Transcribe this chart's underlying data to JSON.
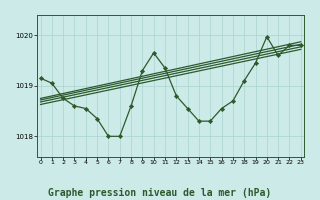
{
  "bg_color": "#cceae7",
  "grid_color": "#aad4d0",
  "line_color": "#2d5a2d",
  "marker_color": "#2d5a2d",
  "title": "Graphe pression niveau de la mer (hPa)",
  "title_fontsize": 7.0,
  "ylim": [
    1017.6,
    1020.4
  ],
  "yticks": [
    1018,
    1019,
    1020
  ],
  "xlim": [
    -0.3,
    23.3
  ],
  "xticks": [
    0,
    1,
    2,
    3,
    4,
    5,
    6,
    7,
    8,
    9,
    10,
    11,
    12,
    13,
    14,
    15,
    16,
    17,
    18,
    19,
    20,
    21,
    22,
    23
  ],
  "zigzag_x": [
    0,
    1,
    2,
    3,
    4,
    5,
    6,
    7,
    8,
    9,
    10,
    11,
    12,
    13,
    14,
    15,
    16,
    17,
    18,
    19,
    20,
    21,
    22,
    23
  ],
  "zigzag_y": [
    1019.15,
    1019.05,
    1018.75,
    1018.6,
    1018.55,
    1018.35,
    1018.0,
    1018.0,
    1018.6,
    1019.3,
    1019.65,
    1019.35,
    1018.8,
    1018.55,
    1018.3,
    1018.3,
    1018.55,
    1018.7,
    1019.1,
    1019.45,
    1019.97,
    1019.6,
    1019.8,
    1019.8
  ],
  "linear_lines": [
    {
      "x0": 0,
      "y0": 1018.75,
      "x1": 23,
      "y1": 1019.87
    },
    {
      "x0": 0,
      "y0": 1018.72,
      "x1": 23,
      "y1": 1019.82
    },
    {
      "x0": 0,
      "y0": 1018.68,
      "x1": 23,
      "y1": 1019.77
    },
    {
      "x0": 0,
      "y0": 1018.63,
      "x1": 23,
      "y1": 1019.72
    }
  ]
}
